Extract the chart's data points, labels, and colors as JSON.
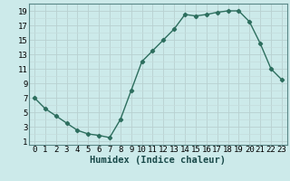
{
  "x": [
    0,
    1,
    2,
    3,
    4,
    5,
    6,
    7,
    8,
    9,
    10,
    11,
    12,
    13,
    14,
    15,
    16,
    17,
    18,
    19,
    20,
    21,
    22,
    23
  ],
  "y": [
    7,
    5.5,
    4.5,
    3.5,
    2.5,
    2,
    1.8,
    1.5,
    4,
    8,
    12,
    13.5,
    15,
    16.5,
    18.5,
    18.3,
    18.5,
    18.8,
    19,
    19,
    17.5,
    14.5,
    11,
    9.5
  ],
  "line_color": "#2d6e5e",
  "marker": "D",
  "marker_size": 2.2,
  "bg_color": "#cceaea",
  "grid_color_major": "#b8d0d0",
  "grid_color_minor": "#c4dcdc",
  "xlabel": "Humidex (Indice chaleur)",
  "xlabel_fontsize": 7.5,
  "xlim": [
    -0.5,
    23.5
  ],
  "ylim": [
    0.5,
    20
  ],
  "yticks": [
    1,
    3,
    5,
    7,
    9,
    11,
    13,
    15,
    17,
    19
  ],
  "xticks": [
    0,
    1,
    2,
    3,
    4,
    5,
    6,
    7,
    8,
    9,
    10,
    11,
    12,
    13,
    14,
    15,
    16,
    17,
    18,
    19,
    20,
    21,
    22,
    23
  ],
  "tick_fontsize": 6.5,
  "line_width": 1.0
}
